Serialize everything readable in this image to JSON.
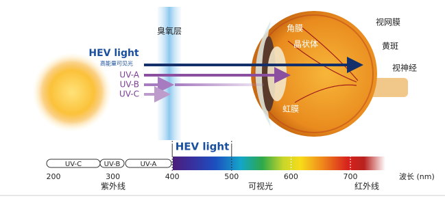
{
  "ozone": "臭氧层",
  "rays": {
    "hev": "HEV light",
    "hev_sub": "高能量可见光",
    "uva": "UV-A",
    "uvb": "UV-B",
    "uvc": "UV-C"
  },
  "eye": {
    "cornea": "角膜",
    "lens": "晶状体",
    "retina": "视网膜",
    "macula": "黄斑",
    "optic_nerve": "视神经",
    "iris": "虹膜"
  },
  "spectrum": {
    "hev": "HEV light",
    "bands": [
      "UV-C",
      "UV-B",
      "UV-A"
    ],
    "ticks": [
      200,
      300,
      400,
      500,
      600,
      700
    ],
    "unit": "波长 (nm)",
    "regions": [
      "紫外线",
      "可视光",
      "红外线"
    ]
  }
}
